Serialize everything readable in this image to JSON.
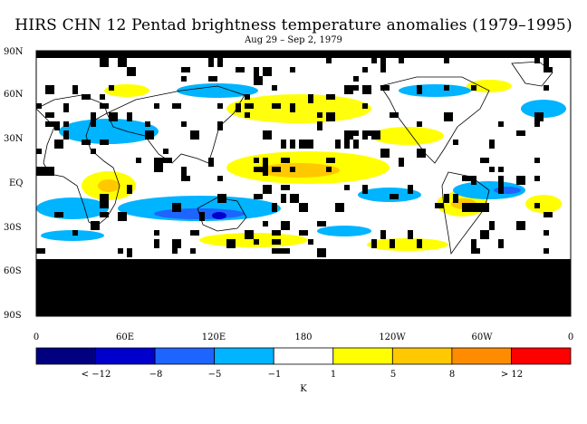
{
  "title": "HIRS CHN 12 Pentad brightness temperature anomalies (1979–1995)",
  "subtitle": "Aug 29 – Sep 2, 1979",
  "lat_labels": [
    "90N",
    "60N",
    "30N",
    "EQ",
    "30S",
    "60S",
    "90S"
  ],
  "lon_labels": [
    "0",
    "60E",
    "120E",
    "180",
    "120W",
    "60W",
    "0"
  ],
  "colorbar": {
    "unit": "K",
    "labels": [
      "< −12",
      "−8",
      "−5",
      "−1",
      "1",
      "5",
      "8",
      "> 12"
    ],
    "colors": [
      "#000080",
      "#0000cd",
      "#1e64ff",
      "#00b4ff",
      "#ffffff",
      "#ffff00",
      "#ffc800",
      "#ff8c00",
      "#ff0000"
    ]
  },
  "legend_missing_color": "#000000"
}
